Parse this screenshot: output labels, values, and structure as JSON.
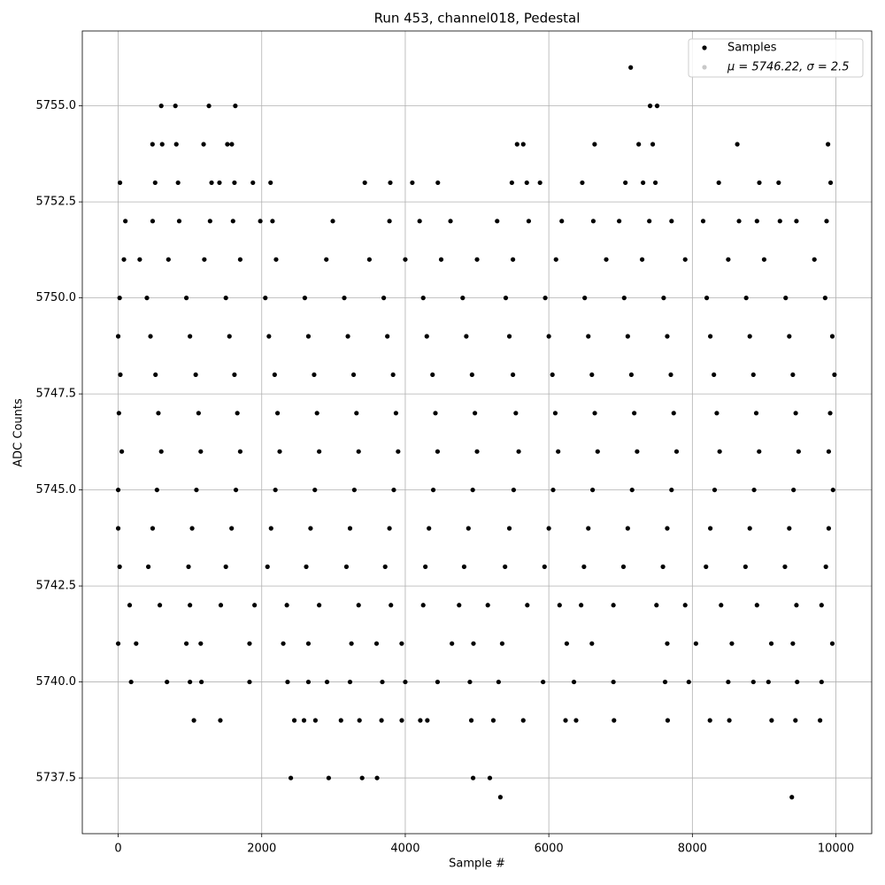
{
  "chart_data": {
    "type": "scatter",
    "title": "Run 453, channel018, Pedestal",
    "xlabel": "Sample #",
    "ylabel": "ADC Counts",
    "legend_note": "μ = 5746.22, σ = 2.5",
    "legend_loc": "upper right",
    "grid": true,
    "xlim": [
      -500,
      10499
    ],
    "ylim": [
      5736.05,
      5756.95
    ],
    "xticks": [
      0,
      2000,
      4000,
      6000,
      8000,
      10000
    ],
    "yticks": [
      5737.5,
      {
        "value": 5740,
        "label": "5740.0"
      },
      5742.5,
      {
        "value": 5745,
        "label": "5745.0"
      },
      5747.5,
      {
        "value": 5750,
        "label": "5750.0"
      },
      5752.5,
      {
        "value": 5755,
        "label": "5755.0"
      }
    ],
    "series": [
      {
        "name": "Samples",
        "color": "#000000",
        "x": [
          7141,
          600,
          797,
          1264,
          1632,
          7411,
          7509,
          478,
          613,
          810,
          1190,
          1521,
          1583,
          5558,
          5644,
          6638,
          7252,
          7448,
          8626,
          9890,
          25,
          515,
          834,
          1301,
          1411,
          1620,
          1877,
          2123,
          3436,
          3791,
          4098,
          4454,
          5485,
          5693,
          5877,
          6466,
          7067,
          7313,
          7485,
          8368,
          8933,
          9202,
          9926,
          100,
          480,
          850,
          1280,
          1600,
          1980,
          2150,
          2990,
          3780,
          4200,
          4630,
          5280,
          5720,
          6180,
          6620,
          6980,
          7400,
          7710,
          8150,
          8650,
          8900,
          9220,
          9450,
          9870,
          80,
          300,
          700,
          1200,
          1700,
          2200,
          2900,
          3500,
          4000,
          4500,
          5000,
          5500,
          6100,
          6800,
          7300,
          7900,
          8500,
          9000,
          9700,
          20,
          400,
          950,
          1500,
          2050,
          2600,
          3150,
          3700,
          4250,
          4800,
          5400,
          5950,
          6500,
          7050,
          7600,
          8200,
          8750,
          9300,
          9850,
          0,
          450,
          1000,
          1550,
          2100,
          2650,
          3200,
          3750,
          4300,
          4850,
          5450,
          6000,
          6550,
          7100,
          7650,
          8250,
          8800,
          9350,
          9950,
          30,
          520,
          1080,
          1620,
          2180,
          2730,
          3280,
          3830,
          4380,
          4930,
          5500,
          6050,
          6600,
          7150,
          7700,
          8300,
          8850,
          9400,
          9980,
          10,
          560,
          1120,
          1660,
          2220,
          2770,
          3320,
          3870,
          4420,
          4970,
          5540,
          6090,
          6640,
          7190,
          7740,
          8340,
          8890,
          9440,
          9920,
          50,
          600,
          1150,
          1700,
          2250,
          2800,
          3350,
          3900,
          4450,
          5000,
          5580,
          6130,
          6680,
          7230,
          7780,
          8380,
          8930,
          9480,
          9900,
          0,
          540,
          1090,
          1640,
          2190,
          2740,
          3290,
          3840,
          4390,
          4940,
          5510,
          6060,
          6610,
          7160,
          7710,
          8310,
          8860,
          9410,
          9960,
          0,
          480,
          1030,
          1580,
          2130,
          2680,
          3230,
          3780,
          4330,
          4880,
          5450,
          6000,
          6550,
          7100,
          7650,
          8250,
          8800,
          9350,
          9900,
          20,
          420,
          980,
          1500,
          2080,
          2620,
          3180,
          3720,
          4280,
          4820,
          5390,
          5940,
          6490,
          7040,
          7590,
          8190,
          8740,
          9290,
          9860,
          160,
          580,
          1000,
          1430,
          1900,
          2350,
          2800,
          3350,
          3800,
          4250,
          4750,
          5150,
          5700,
          6150,
          6450,
          6900,
          7500,
          7900,
          8400,
          8900,
          9450,
          9800,
          0,
          250,
          950,
          1150,
          1830,
          2300,
          2650,
          3250,
          3600,
          3950,
          4650,
          4950,
          5350,
          6250,
          6600,
          7650,
          8050,
          8550,
          9100,
          9400,
          9950,
          180,
          680,
          1000,
          1160,
          1830,
          2360,
          2650,
          2910,
          3230,
          3680,
          4000,
          4450,
          4900,
          5300,
          5920,
          6350,
          6900,
          7620,
          7950,
          8500,
          8850,
          9060,
          9460,
          9800,
          1055,
          1423,
          2454,
          2589,
          2748,
          3104,
          3362,
          3669,
          3951,
          4209,
          4307,
          4920,
          5227,
          5644,
          6233,
          6380,
          6908,
          7656,
          8245,
          8515,
          9104,
          9436,
          9779,
          2405,
          2933,
          3399,
          3607,
          4945,
          5178,
          5325,
          9386
        ],
        "values": [
          5756,
          5755,
          5755,
          5755,
          5755,
          5755,
          5755,
          5754,
          5754,
          5754,
          5754,
          5754,
          5754,
          5754,
          5754,
          5754,
          5754,
          5754,
          5754,
          5754,
          5753,
          5753,
          5753,
          5753,
          5753,
          5753,
          5753,
          5753,
          5753,
          5753,
          5753,
          5753,
          5753,
          5753,
          5753,
          5753,
          5753,
          5753,
          5753,
          5753,
          5753,
          5753,
          5753,
          5752,
          5752,
          5752,
          5752,
          5752,
          5752,
          5752,
          5752,
          5752,
          5752,
          5752,
          5752,
          5752,
          5752,
          5752,
          5752,
          5752,
          5752,
          5752,
          5752,
          5752,
          5752,
          5752,
          5752,
          5751,
          5751,
          5751,
          5751,
          5751,
          5751,
          5751,
          5751,
          5751,
          5751,
          5751,
          5751,
          5751,
          5751,
          5751,
          5751,
          5751,
          5751,
          5751,
          5750,
          5750,
          5750,
          5750,
          5750,
          5750,
          5750,
          5750,
          5750,
          5750,
          5750,
          5750,
          5750,
          5750,
          5750,
          5750,
          5750,
          5750,
          5750,
          5749,
          5749,
          5749,
          5749,
          5749,
          5749,
          5749,
          5749,
          5749,
          5749,
          5749,
          5749,
          5749,
          5749,
          5749,
          5749,
          5749,
          5749,
          5749,
          5748,
          5748,
          5748,
          5748,
          5748,
          5748,
          5748,
          5748,
          5748,
          5748,
          5748,
          5748,
          5748,
          5748,
          5748,
          5748,
          5748,
          5748,
          5748,
          5747,
          5747,
          5747,
          5747,
          5747,
          5747,
          5747,
          5747,
          5747,
          5747,
          5747,
          5747,
          5747,
          5747,
          5747,
          5747,
          5747,
          5747,
          5747,
          5746,
          5746,
          5746,
          5746,
          5746,
          5746,
          5746,
          5746,
          5746,
          5746,
          5746,
          5746,
          5746,
          5746,
          5746,
          5746,
          5746,
          5746,
          5746,
          5745,
          5745,
          5745,
          5745,
          5745,
          5745,
          5745,
          5745,
          5745,
          5745,
          5745,
          5745,
          5745,
          5745,
          5745,
          5745,
          5745,
          5745,
          5745,
          5744,
          5744,
          5744,
          5744,
          5744,
          5744,
          5744,
          5744,
          5744,
          5744,
          5744,
          5744,
          5744,
          5744,
          5744,
          5744,
          5744,
          5744,
          5744,
          5743,
          5743,
          5743,
          5743,
          5743,
          5743,
          5743,
          5743,
          5743,
          5743,
          5743,
          5743,
          5743,
          5743,
          5743,
          5743,
          5743,
          5743,
          5743,
          5742,
          5742,
          5742,
          5742,
          5742,
          5742,
          5742,
          5742,
          5742,
          5742,
          5742,
          5742,
          5742,
          5742,
          5742,
          5742,
          5742,
          5742,
          5742,
          5742,
          5742,
          5742,
          5741,
          5741,
          5741,
          5741,
          5741,
          5741,
          5741,
          5741,
          5741,
          5741,
          5741,
          5741,
          5741,
          5741,
          5741,
          5741,
          5741,
          5741,
          5741,
          5741,
          5741,
          5740,
          5740,
          5740,
          5740,
          5740,
          5740,
          5740,
          5740,
          5740,
          5740,
          5740,
          5740,
          5740,
          5740,
          5740,
          5740,
          5740,
          5740,
          5740,
          5740,
          5740,
          5740,
          5740,
          5740,
          5739,
          5739,
          5739,
          5739,
          5739,
          5739,
          5739,
          5739,
          5739,
          5739,
          5739,
          5739,
          5739,
          5739,
          5739,
          5739,
          5739,
          5739,
          5739,
          5739,
          5739,
          5739,
          5739,
          5737.5,
          5737.5,
          5737.5,
          5737.5,
          5737.5,
          5737.5,
          5737,
          5737
        ]
      }
    ]
  }
}
